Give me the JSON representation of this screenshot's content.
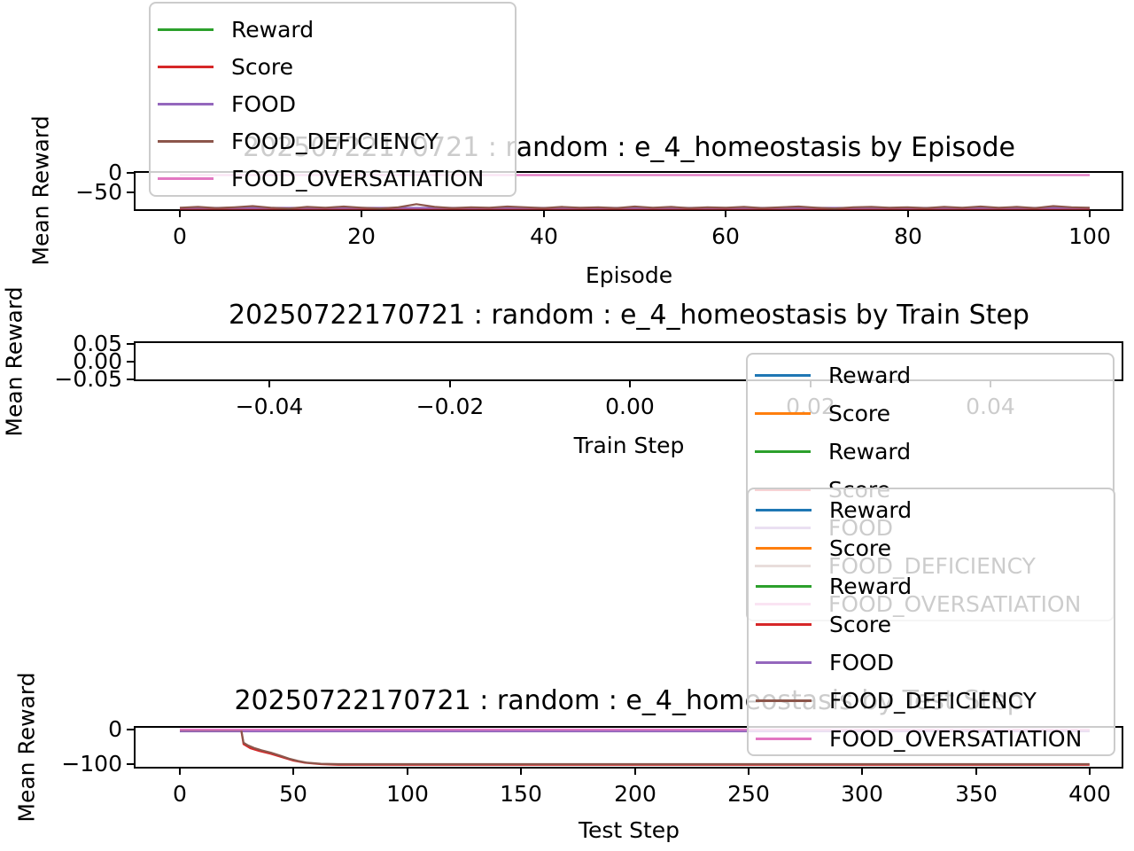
{
  "plots": {
    "episode": {
      "title": "20250722170721 : random : e_4_homeostasis by Episode",
      "xlabel": "Episode",
      "ylabel": "Mean Reward",
      "yticks": [
        "0",
        "−50"
      ],
      "xticks": [
        "0",
        "20",
        "40",
        "60",
        "80",
        "100"
      ]
    },
    "train": {
      "title": "20250722170721 : random : e_4_homeostasis by Train Step",
      "xlabel": "Train Step",
      "ylabel": "Mean Reward",
      "yticks": [
        "0.05",
        "0.00",
        "−0.05"
      ],
      "xticks": [
        "−0.04",
        "−0.02",
        "0.00",
        "0.02",
        "0.04"
      ]
    },
    "test": {
      "title": "20250722170721 : random : e_4_homeostasis by Test Step",
      "xlabel": "Test Step",
      "ylabel": "Mean Reward",
      "yticks": [
        "0",
        "−100"
      ],
      "xticks": [
        "0",
        "50",
        "100",
        "150",
        "200",
        "250",
        "300",
        "350",
        "400"
      ]
    }
  },
  "legends": {
    "top": {
      "entries": [
        {
          "label": "Reward",
          "color": "#2ca02c"
        },
        {
          "label": "Score",
          "color": "#d62728"
        },
        {
          "label": "FOOD",
          "color": "#9467bd"
        },
        {
          "label": "FOOD_DEFICIENCY",
          "color": "#8c564b"
        },
        {
          "label": "FOOD_OVERSATIATION",
          "color": "#e377c2"
        }
      ]
    },
    "mid": {
      "entries": [
        {
          "label": "Reward",
          "color": "#1f77b4"
        },
        {
          "label": "Score",
          "color": "#ff7f0e"
        },
        {
          "label": "Reward",
          "color": "#2ca02c"
        },
        {
          "label": "Score",
          "color": "#d62728"
        },
        {
          "label": "FOOD",
          "color": "#9467bd"
        },
        {
          "label": "FOOD_DEFICIENCY",
          "color": "#8c564b"
        },
        {
          "label": "FOOD_OVERSATIATION",
          "color": "#e377c2"
        }
      ]
    },
    "bottom": {
      "entries": [
        {
          "label": "Reward",
          "color": "#1f77b4"
        },
        {
          "label": "Score",
          "color": "#ff7f0e"
        },
        {
          "label": "Reward",
          "color": "#2ca02c"
        },
        {
          "label": "Score",
          "color": "#d62728"
        },
        {
          "label": "FOOD",
          "color": "#9467bd"
        },
        {
          "label": "FOOD_DEFICIENCY",
          "color": "#8c564b"
        },
        {
          "label": "FOOD_OVERSATIATION",
          "color": "#e377c2"
        }
      ]
    }
  },
  "chart_data": [
    {
      "id": "episode",
      "type": "line",
      "title": "20250722170721 : random : e_4_homeostasis by Episode",
      "xlabel": "Episode",
      "ylabel": "Mean Reward",
      "xlim": [
        0,
        100
      ],
      "ylim": [
        -103,
        5
      ],
      "xtick_values": [
        0,
        20,
        40,
        60,
        80,
        100
      ],
      "ytick_values": [
        0,
        -50
      ],
      "grid": false,
      "legend_position": "upper-left-outside",
      "series": [
        {
          "name": "Reward",
          "color": "#2ca02c",
          "points": [
            [
              0,
              -90
            ],
            [
              100,
              -90
            ]
          ]
        },
        {
          "name": "Score",
          "color": "#d62728",
          "points": [
            [
              0,
              -91.5
            ],
            [
              100,
              -91.5
            ]
          ]
        },
        {
          "name": "FOOD",
          "color": "#9467bd",
          "points": [
            [
              0,
              -89.5
            ],
            [
              100,
              -89.5
            ]
          ]
        },
        {
          "name": "FOOD_DEFICIENCY",
          "color": "#8c564b",
          "points": [
            [
              0,
              -89
            ],
            [
              2,
              -87
            ],
            [
              4,
              -90
            ],
            [
              6,
              -88
            ],
            [
              8,
              -85
            ],
            [
              10,
              -89
            ],
            [
              12,
              -91
            ],
            [
              14,
              -87
            ],
            [
              16,
              -89
            ],
            [
              18,
              -86
            ],
            [
              20,
              -89
            ],
            [
              22,
              -91
            ],
            [
              24,
              -88
            ],
            [
              26,
              -80
            ],
            [
              28,
              -87
            ],
            [
              30,
              -90
            ],
            [
              32,
              -88
            ],
            [
              34,
              -89
            ],
            [
              36,
              -86
            ],
            [
              38,
              -88
            ],
            [
              40,
              -90
            ],
            [
              42,
              -87
            ],
            [
              44,
              -89
            ],
            [
              46,
              -88
            ],
            [
              48,
              -90
            ],
            [
              50,
              -86
            ],
            [
              52,
              -89
            ],
            [
              54,
              -87
            ],
            [
              56,
              -90
            ],
            [
              58,
              -88
            ],
            [
              60,
              -89
            ],
            [
              62,
              -87
            ],
            [
              64,
              -90
            ],
            [
              66,
              -88
            ],
            [
              68,
              -86
            ],
            [
              70,
              -89
            ],
            [
              72,
              -91
            ],
            [
              74,
              -88
            ],
            [
              76,
              -87
            ],
            [
              78,
              -89
            ],
            [
              80,
              -88
            ],
            [
              82,
              -90
            ],
            [
              84,
              -87
            ],
            [
              86,
              -89
            ],
            [
              88,
              -86
            ],
            [
              90,
              -89
            ],
            [
              92,
              -87
            ],
            [
              94,
              -90
            ],
            [
              96,
              -85
            ],
            [
              98,
              -88
            ],
            [
              100,
              -89
            ]
          ]
        },
        {
          "name": "FOOD_OVERSATIATION",
          "color": "#e377c2",
          "points": [
            [
              0,
              -5
            ],
            [
              100,
              -5
            ]
          ]
        }
      ]
    },
    {
      "id": "train",
      "type": "line",
      "title": "20250722170721 : random : e_4_homeostasis by Train Step",
      "xlabel": "Train Step",
      "ylabel": "Mean Reward",
      "xlim": [
        -0.05,
        0.05
      ],
      "ylim": [
        -0.055,
        0.055
      ],
      "xtick_values": [
        -0.04,
        -0.02,
        0.0,
        0.02,
        0.04
      ],
      "ytick_values": [
        0.05,
        0.0,
        -0.05
      ],
      "grid": false,
      "legend_position": "right-overlapping",
      "series": []
    },
    {
      "id": "test",
      "type": "line",
      "title": "20250722170721 : random : e_4_homeostasis by Test Step",
      "xlabel": "Test Step",
      "ylabel": "Mean Reward",
      "xlim": [
        0,
        400
      ],
      "ylim": [
        -113,
        10
      ],
      "xtick_values": [
        0,
        50,
        100,
        150,
        200,
        250,
        300,
        350,
        400
      ],
      "ytick_values": [
        0,
        -100
      ],
      "grid": false,
      "legend_position": "upper-right-overlapping",
      "series": [
        {
          "name": "Reward",
          "color": "#1f77b4",
          "points": [
            [
              0,
              -2
            ],
            [
              400,
              -2
            ]
          ]
        },
        {
          "name": "Score",
          "color": "#ff7f0e",
          "points": [
            [
              0,
              -3
            ],
            [
              400,
              -3
            ]
          ]
        },
        {
          "name": "Reward",
          "color": "#2ca02c",
          "points": [
            [
              0,
              -4
            ],
            [
              400,
              -4
            ]
          ]
        },
        {
          "name": "Score",
          "color": "#d62728",
          "points": [
            [
              0,
              -2
            ],
            [
              27,
              -2
            ],
            [
              28,
              -42
            ],
            [
              31,
              -54
            ],
            [
              35,
              -62
            ],
            [
              40,
              -70
            ],
            [
              45,
              -80
            ],
            [
              50,
              -90
            ],
            [
              55,
              -96
            ],
            [
              62,
              -100
            ],
            [
              70,
              -102
            ],
            [
              400,
              -102
            ]
          ]
        },
        {
          "name": "FOOD",
          "color": "#9467bd",
          "points": [
            [
              0,
              -5
            ],
            [
              400,
              -5
            ]
          ]
        },
        {
          "name": "FOOD_DEFICIENCY",
          "color": "#8c564b",
          "points": [
            [
              0,
              -1
            ],
            [
              27,
              -1
            ],
            [
              28,
              -38
            ],
            [
              30,
              -46
            ],
            [
              33,
              -54
            ],
            [
              36,
              -60
            ],
            [
              40,
              -67
            ],
            [
              44,
              -75
            ],
            [
              48,
              -84
            ],
            [
              52,
              -91
            ],
            [
              56,
              -96
            ],
            [
              62,
              -99
            ],
            [
              70,
              -100
            ],
            [
              400,
              -100
            ]
          ]
        },
        {
          "name": "FOOD_OVERSATIATION",
          "color": "#e377c2",
          "points": [
            [
              0,
              0
            ],
            [
              400,
              0
            ]
          ]
        }
      ]
    }
  ]
}
